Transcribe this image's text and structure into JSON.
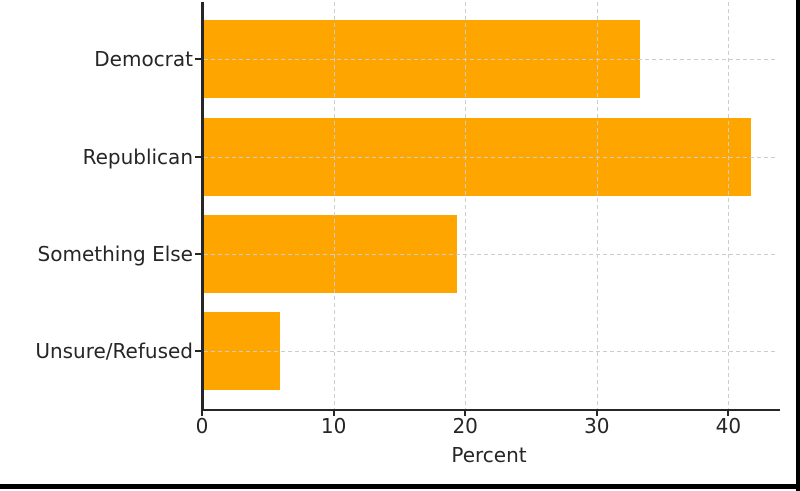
{
  "chart_data": {
    "type": "bar",
    "orientation": "horizontal",
    "title": "",
    "xlabel": "Percent",
    "ylabel": "",
    "categories": [
      "Democrat",
      "Republican",
      "Something Else",
      "Unsure/Refused"
    ],
    "values": [
      33.3,
      41.7,
      19.4,
      5.9
    ],
    "xticks": [
      0,
      10,
      20,
      30,
      40
    ],
    "xlim": [
      0,
      43.6
    ],
    "grid": "dashed, drawn above bars, vertical at xticks and horizontal at category centers",
    "legend": "none",
    "bar_color": "#FFA500",
    "grid_color": "#cdcdcd",
    "axis_color": "#262626",
    "text_color": "#262626",
    "background_color": "#ffffff",
    "screen_edge_color": "#000000"
  }
}
